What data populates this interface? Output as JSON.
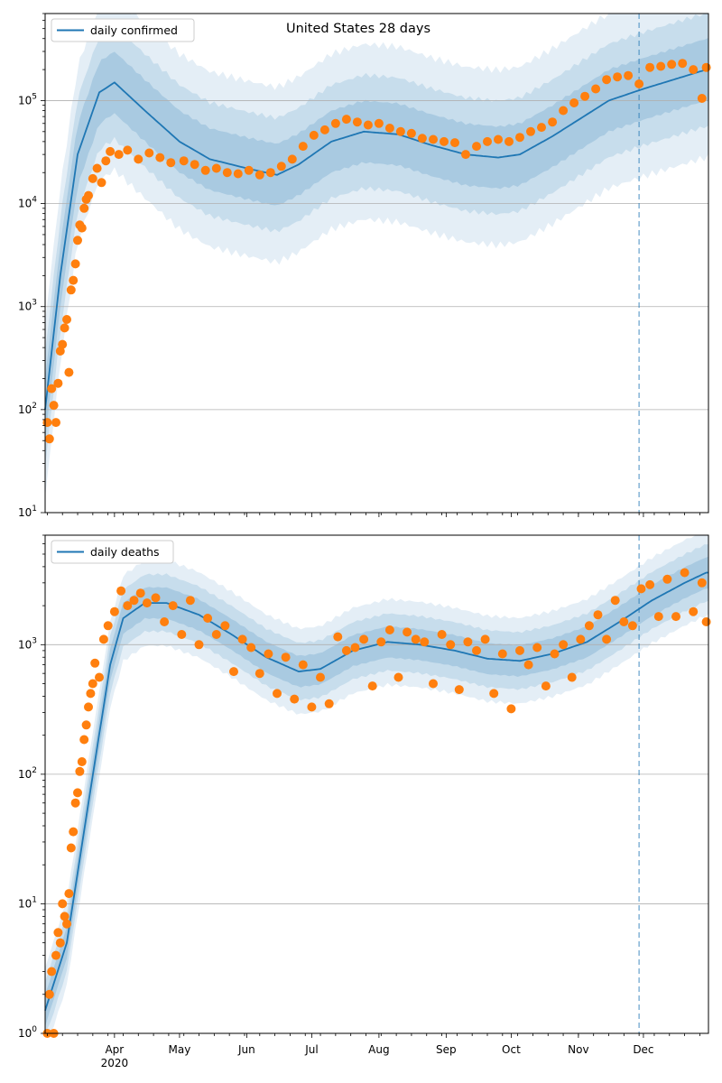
{
  "chart_data": [
    {
      "type": "scatter",
      "title": "United States 28 days",
      "scale": "log",
      "ylim": [
        10,
        700000
      ],
      "yticks": [
        10,
        100,
        1000,
        10000,
        100000
      ],
      "ytick_labels": [
        [
          "10",
          "1"
        ],
        [
          "10",
          "2"
        ],
        [
          "10",
          "3"
        ],
        [
          "10",
          "4"
        ],
        [
          "10",
          "5"
        ]
      ],
      "legend": {
        "label": "daily confirmed",
        "placement": "upper-left"
      },
      "colors": {
        "line": "#1f77b4",
        "points": "#ff7f0e",
        "band": "#1f77b4",
        "marker_line": "#1f77b4"
      },
      "marker_date": "2020-11-29",
      "median_trend": [
        [
          "2020-02-29",
          100
        ],
        [
          "2020-03-07",
          2000
        ],
        [
          "2020-03-15",
          30000
        ],
        [
          "2020-03-25",
          120000
        ],
        [
          "2020-04-01",
          150000
        ],
        [
          "2020-04-15",
          80000
        ],
        [
          "2020-05-01",
          40000
        ],
        [
          "2020-05-15",
          27000
        ],
        [
          "2020-06-01",
          22000
        ],
        [
          "2020-06-15",
          19000
        ],
        [
          "2020-06-25",
          24000
        ],
        [
          "2020-07-10",
          40000
        ],
        [
          "2020-07-25",
          50000
        ],
        [
          "2020-08-10",
          47000
        ],
        [
          "2020-08-25",
          37000
        ],
        [
          "2020-09-10",
          30000
        ],
        [
          "2020-09-25",
          28000
        ],
        [
          "2020-10-05",
          30000
        ],
        [
          "2020-10-20",
          45000
        ],
        [
          "2020-11-01",
          65000
        ],
        [
          "2020-11-15",
          100000
        ],
        [
          "2020-12-01",
          130000
        ],
        [
          "2020-12-15",
          160000
        ],
        [
          "2020-12-30",
          200000
        ]
      ],
      "band_widths_log10": [
        0.3,
        0.55,
        0.85
      ],
      "observed": [
        [
          "2020-03-01",
          75
        ],
        [
          "2020-03-02",
          52
        ],
        [
          "2020-03-03",
          160
        ],
        [
          "2020-03-04",
          110
        ],
        [
          "2020-03-05",
          75
        ],
        [
          "2020-03-06",
          180
        ],
        [
          "2020-03-07",
          370
        ],
        [
          "2020-03-08",
          430
        ],
        [
          "2020-03-09",
          620
        ],
        [
          "2020-03-10",
          750
        ],
        [
          "2020-03-11",
          230
        ],
        [
          "2020-03-12",
          1450
        ],
        [
          "2020-03-13",
          1800
        ],
        [
          "2020-03-14",
          2600
        ],
        [
          "2020-03-15",
          4400
        ],
        [
          "2020-03-16",
          6200
        ],
        [
          "2020-03-17",
          5800
        ],
        [
          "2020-03-18",
          9000
        ],
        [
          "2020-03-19",
          11000
        ],
        [
          "2020-03-20",
          12000
        ],
        [
          "2020-03-22",
          17500
        ],
        [
          "2020-03-24",
          22000
        ],
        [
          "2020-03-26",
          16000
        ],
        [
          "2020-03-28",
          26000
        ],
        [
          "2020-03-30",
          32000
        ],
        [
          "2020-04-03",
          30000
        ],
        [
          "2020-04-07",
          33000
        ],
        [
          "2020-04-12",
          27000
        ],
        [
          "2020-04-17",
          31000
        ],
        [
          "2020-04-22",
          28000
        ],
        [
          "2020-04-27",
          25000
        ],
        [
          "2020-05-03",
          26000
        ],
        [
          "2020-05-08",
          24000
        ],
        [
          "2020-05-13",
          21000
        ],
        [
          "2020-05-18",
          22000
        ],
        [
          "2020-05-23",
          20000
        ],
        [
          "2020-05-28",
          19500
        ],
        [
          "2020-06-02",
          21000
        ],
        [
          "2020-06-07",
          19000
        ],
        [
          "2020-06-12",
          20000
        ],
        [
          "2020-06-17",
          23000
        ],
        [
          "2020-06-22",
          27000
        ],
        [
          "2020-06-27",
          36000
        ],
        [
          "2020-07-02",
          46000
        ],
        [
          "2020-07-07",
          52000
        ],
        [
          "2020-07-12",
          60000
        ],
        [
          "2020-07-17",
          66000
        ],
        [
          "2020-07-22",
          62000
        ],
        [
          "2020-07-27",
          58000
        ],
        [
          "2020-08-01",
          60000
        ],
        [
          "2020-08-06",
          54000
        ],
        [
          "2020-08-11",
          50000
        ],
        [
          "2020-08-16",
          48000
        ],
        [
          "2020-08-21",
          43000
        ],
        [
          "2020-08-26",
          42000
        ],
        [
          "2020-08-31",
          40000
        ],
        [
          "2020-09-05",
          39000
        ],
        [
          "2020-09-10",
          30000
        ],
        [
          "2020-09-15",
          36000
        ],
        [
          "2020-09-20",
          40000
        ],
        [
          "2020-09-25",
          42000
        ],
        [
          "2020-09-30",
          40000
        ],
        [
          "2020-10-05",
          44000
        ],
        [
          "2020-10-10",
          50000
        ],
        [
          "2020-10-15",
          55000
        ],
        [
          "2020-10-20",
          62000
        ],
        [
          "2020-10-25",
          80000
        ],
        [
          "2020-10-30",
          95000
        ],
        [
          "2020-11-04",
          110000
        ],
        [
          "2020-11-09",
          130000
        ],
        [
          "2020-11-14",
          160000
        ],
        [
          "2020-11-19",
          170000
        ],
        [
          "2020-11-24",
          175000
        ],
        [
          "2020-11-29",
          145000
        ],
        [
          "2020-12-04",
          210000
        ],
        [
          "2020-12-09",
          215000
        ],
        [
          "2020-12-14",
          225000
        ],
        [
          "2020-12-19",
          230000
        ],
        [
          "2020-12-24",
          200000
        ],
        [
          "2020-12-28",
          105000
        ],
        [
          "2020-12-30",
          210000
        ]
      ]
    },
    {
      "type": "scatter",
      "title": "",
      "scale": "log",
      "ylim": [
        1,
        7000
      ],
      "yticks": [
        1,
        10,
        100,
        1000
      ],
      "ytick_labels": [
        [
          "10",
          "0"
        ],
        [
          "10",
          "1"
        ],
        [
          "10",
          "2"
        ],
        [
          "10",
          "3"
        ]
      ],
      "legend": {
        "label": "daily deaths",
        "placement": "upper-left"
      },
      "colors": {
        "line": "#1f77b4",
        "points": "#ff7f0e",
        "band": "#1f77b4",
        "marker_line": "#1f77b4"
      },
      "marker_date": "2020-11-29",
      "median_trend": [
        [
          "2020-02-29",
          1.5
        ],
        [
          "2020-03-10",
          5
        ],
        [
          "2020-03-20",
          60
        ],
        [
          "2020-03-30",
          700
        ],
        [
          "2020-04-05",
          1600
        ],
        [
          "2020-04-15",
          2100
        ],
        [
          "2020-04-25",
          2100
        ],
        [
          "2020-05-10",
          1700
        ],
        [
          "2020-05-25",
          1200
        ],
        [
          "2020-06-10",
          800
        ],
        [
          "2020-06-25",
          620
        ],
        [
          "2020-07-05",
          650
        ],
        [
          "2020-07-20",
          900
        ],
        [
          "2020-08-05",
          1050
        ],
        [
          "2020-08-20",
          1000
        ],
        [
          "2020-09-05",
          900
        ],
        [
          "2020-09-20",
          780
        ],
        [
          "2020-10-05",
          750
        ],
        [
          "2020-10-20",
          850
        ],
        [
          "2020-11-05",
          1050
        ],
        [
          "2020-11-20",
          1500
        ],
        [
          "2020-12-05",
          2200
        ],
        [
          "2020-12-20",
          3000
        ],
        [
          "2020-12-30",
          3600
        ]
      ],
      "band_widths_log10": [
        0.12,
        0.22,
        0.33
      ],
      "observed": [
        [
          "2020-03-01",
          1
        ],
        [
          "2020-03-02",
          2
        ],
        [
          "2020-03-03",
          3
        ],
        [
          "2020-03-04",
          1
        ],
        [
          "2020-03-05",
          4
        ],
        [
          "2020-03-06",
          6
        ],
        [
          "2020-03-07",
          5
        ],
        [
          "2020-03-08",
          10
        ],
        [
          "2020-03-09",
          8
        ],
        [
          "2020-03-10",
          7
        ],
        [
          "2020-03-11",
          12
        ],
        [
          "2020-03-12",
          27
        ],
        [
          "2020-03-13",
          36
        ],
        [
          "2020-03-14",
          60
        ],
        [
          "2020-03-15",
          72
        ],
        [
          "2020-03-16",
          105
        ],
        [
          "2020-03-17",
          125
        ],
        [
          "2020-03-18",
          185
        ],
        [
          "2020-03-19",
          240
        ],
        [
          "2020-03-20",
          330
        ],
        [
          "2020-03-21",
          420
        ],
        [
          "2020-03-22",
          500
        ],
        [
          "2020-03-23",
          720
        ],
        [
          "2020-03-25",
          560
        ],
        [
          "2020-03-27",
          1100
        ],
        [
          "2020-03-29",
          1400
        ],
        [
          "2020-04-01",
          1800
        ],
        [
          "2020-04-04",
          2600
        ],
        [
          "2020-04-07",
          2000
        ],
        [
          "2020-04-10",
          2200
        ],
        [
          "2020-04-13",
          2500
        ],
        [
          "2020-04-16",
          2100
        ],
        [
          "2020-04-20",
          2300
        ],
        [
          "2020-04-24",
          1500
        ],
        [
          "2020-04-28",
          2000
        ],
        [
          "2020-05-02",
          1200
        ],
        [
          "2020-05-06",
          2200
        ],
        [
          "2020-05-10",
          1000
        ],
        [
          "2020-05-14",
          1600
        ],
        [
          "2020-05-18",
          1200
        ],
        [
          "2020-05-22",
          1400
        ],
        [
          "2020-05-26",
          620
        ],
        [
          "2020-05-30",
          1100
        ],
        [
          "2020-06-03",
          950
        ],
        [
          "2020-06-07",
          600
        ],
        [
          "2020-06-11",
          850
        ],
        [
          "2020-06-15",
          420
        ],
        [
          "2020-06-19",
          800
        ],
        [
          "2020-06-23",
          380
        ],
        [
          "2020-06-27",
          700
        ],
        [
          "2020-07-01",
          330
        ],
        [
          "2020-07-05",
          560
        ],
        [
          "2020-07-09",
          350
        ],
        [
          "2020-07-13",
          1150
        ],
        [
          "2020-07-17",
          900
        ],
        [
          "2020-07-21",
          950
        ],
        [
          "2020-07-25",
          1100
        ],
        [
          "2020-07-29",
          480
        ],
        [
          "2020-08-02",
          1050
        ],
        [
          "2020-08-06",
          1300
        ],
        [
          "2020-08-10",
          560
        ],
        [
          "2020-08-14",
          1250
        ],
        [
          "2020-08-18",
          1100
        ],
        [
          "2020-08-22",
          1050
        ],
        [
          "2020-08-26",
          500
        ],
        [
          "2020-08-30",
          1200
        ],
        [
          "2020-09-03",
          1000
        ],
        [
          "2020-09-07",
          450
        ],
        [
          "2020-09-11",
          1050
        ],
        [
          "2020-09-15",
          900
        ],
        [
          "2020-09-19",
          1100
        ],
        [
          "2020-09-23",
          420
        ],
        [
          "2020-09-27",
          850
        ],
        [
          "2020-10-01",
          320
        ],
        [
          "2020-10-05",
          900
        ],
        [
          "2020-10-09",
          700
        ],
        [
          "2020-10-13",
          950
        ],
        [
          "2020-10-17",
          480
        ],
        [
          "2020-10-21",
          850
        ],
        [
          "2020-10-25",
          1000
        ],
        [
          "2020-10-29",
          560
        ],
        [
          "2020-11-02",
          1100
        ],
        [
          "2020-11-06",
          1400
        ],
        [
          "2020-11-10",
          1700
        ],
        [
          "2020-11-14",
          1100
        ],
        [
          "2020-11-18",
          2200
        ],
        [
          "2020-11-22",
          1500
        ],
        [
          "2020-11-26",
          1400
        ],
        [
          "2020-11-30",
          2700
        ],
        [
          "2020-12-04",
          2900
        ],
        [
          "2020-12-08",
          1650
        ],
        [
          "2020-12-12",
          3200
        ],
        [
          "2020-12-16",
          1650
        ],
        [
          "2020-12-20",
          3600
        ],
        [
          "2020-12-24",
          1800
        ],
        [
          "2020-12-28",
          3000
        ],
        [
          "2020-12-30",
          1500
        ]
      ]
    }
  ],
  "x_axis": {
    "start": "2020-02-29",
    "end": "2020-12-31",
    "month_labels": [
      {
        "date": "2020-04-01",
        "label": "Apr",
        "sub": "2020"
      },
      {
        "date": "2020-05-01",
        "label": "May"
      },
      {
        "date": "2020-06-01",
        "label": "Jun"
      },
      {
        "date": "2020-07-01",
        "label": "Jul"
      },
      {
        "date": "2020-08-01",
        "label": "Aug"
      },
      {
        "date": "2020-09-01",
        "label": "Sep"
      },
      {
        "date": "2020-10-01",
        "label": "Oct"
      },
      {
        "date": "2020-11-01",
        "label": "Nov"
      },
      {
        "date": "2020-12-01",
        "label": "Dec"
      }
    ]
  }
}
